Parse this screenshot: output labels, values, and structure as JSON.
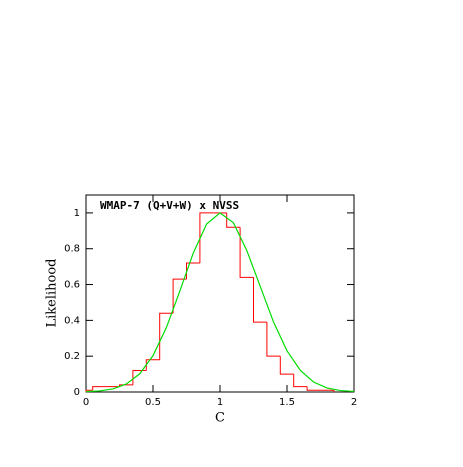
{
  "chart_data": [
    {
      "type": "histogram",
      "annotation": "WMAP-7 (Q+V+W) x NVSS",
      "annotation_color": "#9e2a5c",
      "xlabel": "C",
      "ylabel": "Likelihood",
      "bins": [
        0,
        0.05,
        0.15,
        0.25,
        0.35,
        0.45,
        0.55,
        0.65,
        0.75,
        0.85,
        0.95,
        1.05,
        1.15,
        1.25,
        1.35,
        1.45,
        1.55,
        1.65,
        1.75,
        1.85
      ],
      "counts": [
        0.01,
        0.03,
        0.03,
        0.04,
        0.12,
        0.18,
        0.44,
        0.63,
        0.72,
        1.0,
        1.0,
        0.92,
        0.64,
        0.39,
        0.2,
        0.1,
        0.03,
        0.01,
        0.01
      ],
      "color": "#ff0000",
      "xlim": [
        0,
        2
      ],
      "xticks": [
        0,
        0.5,
        1,
        1.5,
        2
      ],
      "ylim": [
        0,
        1.1
      ],
      "yticks": [
        0,
        0.2,
        0.4,
        0.6,
        0.8,
        1
      ]
    },
    {
      "type": "line",
      "x": [
        0,
        0.1,
        0.2,
        0.3,
        0.4,
        0.5,
        0.6,
        0.7,
        0.8,
        0.9,
        1.0,
        1.1,
        1.2,
        1.3,
        1.4,
        1.5,
        1.6,
        1.7,
        1.8,
        1.9,
        2.0
      ],
      "values": [
        0.002,
        0.006,
        0.017,
        0.044,
        0.101,
        0.203,
        0.36,
        0.563,
        0.775,
        0.938,
        1,
        0.945,
        0.79,
        0.59,
        0.39,
        0.23,
        0.12,
        0.055,
        0.022,
        0.008,
        0.003
      ],
      "color": "#00dd00"
    }
  ]
}
